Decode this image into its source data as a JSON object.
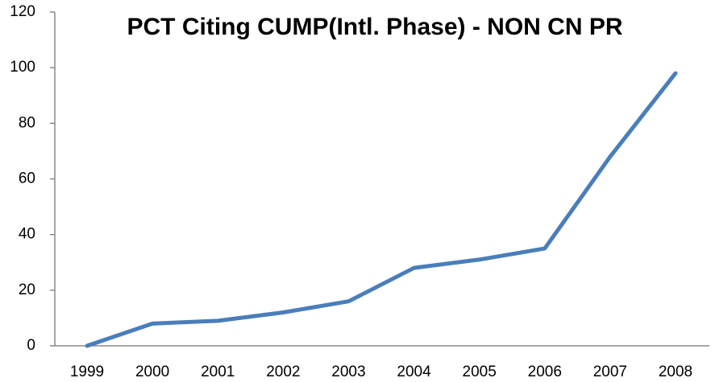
{
  "chart_data": {
    "type": "line",
    "title": "PCT Citing CUMP(Intl. Phase) - NON CN PR",
    "categories": [
      "1999",
      "2000",
      "2001",
      "2002",
      "2003",
      "2004",
      "2005",
      "2006",
      "2007",
      "2008"
    ],
    "series": [
      {
        "name": "PCT Citing CUMP",
        "color": "#4a7ebb",
        "values": [
          0,
          8,
          9,
          12,
          16,
          28,
          31,
          35,
          68,
          98
        ]
      }
    ],
    "ylim": [
      0,
      120
    ],
    "yticks": [
      0,
      20,
      40,
      60,
      80,
      100,
      120
    ],
    "grid": false,
    "legend": false
  }
}
